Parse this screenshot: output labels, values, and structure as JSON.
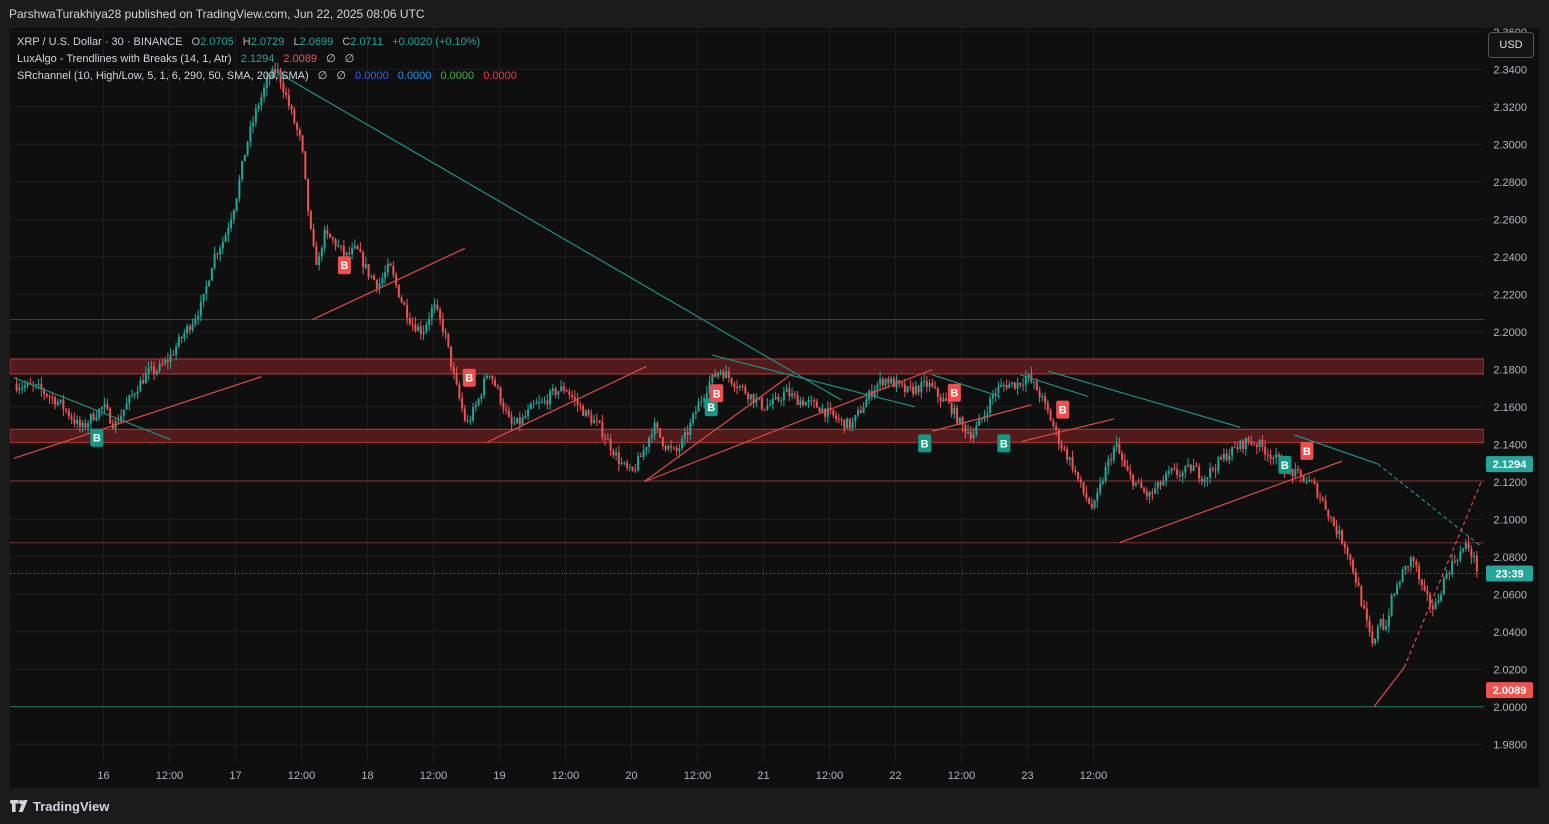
{
  "header": {
    "published_text": "ParshwaTurakhiya28 published on TradingView.com, Jun 22, 2025 08:06 UTC"
  },
  "legend": {
    "symbol": "XRP / U.S. Dollar · 30 · BINANCE",
    "ohlc": [
      {
        "key": "O",
        "value": "2.0705"
      },
      {
        "key": "H",
        "value": "2.0729"
      },
      {
        "key": "L",
        "value": "2.0699"
      },
      {
        "key": "C",
        "value": "2.0711"
      }
    ],
    "change": "+0.0020 (+0.10%)",
    "indicator1": {
      "name": "LuxAlgo - Trendlines with Breaks (14, 1, Atr)",
      "v1": "2.1294",
      "v2": "2.0089",
      "v3": "∅",
      "v4": "∅"
    },
    "indicator2": {
      "name": "SRchannel (10, High/Low, 5, 1, 6, 290, 50, SMA, 200, SMA)",
      "v1": "∅",
      "v2": "∅",
      "v3": "0.0000",
      "v4": "0.0000",
      "v5": "0.0000",
      "v6": "0.0000"
    }
  },
  "currency_button": "USD",
  "footer": {
    "brand": "TradingView"
  },
  "colors": {
    "up": "#26a69a",
    "down": "#ef5350",
    "background": "#0f0f0f",
    "grid": "#1e1e1e",
    "zone_fill": "#5e1c1c",
    "zone_line": "#b23b3b",
    "teal_line": "#1f8e86",
    "red_line": "#e04a4a"
  },
  "chart_data": {
    "type": "candlestick",
    "symbol": "XRP / U.S. Dollar",
    "interval": "30",
    "exchange": "BINANCE",
    "y_axis": {
      "ticks": [
        "2.3600",
        "2.3400",
        "2.3200",
        "2.3000",
        "2.2800",
        "2.2600",
        "2.2400",
        "2.2200",
        "2.2000",
        "2.1800",
        "2.1600",
        "2.1400",
        "2.1200",
        "2.1000",
        "2.0800",
        "2.0600",
        "2.0400",
        "2.0200",
        "2.0000",
        "1.9800"
      ],
      "range": [
        1.97,
        2.362
      ]
    },
    "x_axis": {
      "ticks": [
        "16",
        "12:00",
        "17",
        "12:00",
        "18",
        "12:00",
        "19",
        "12:00",
        "20",
        "12:00",
        "21",
        "12:00",
        "22",
        "12:00",
        "23",
        "12:00"
      ],
      "range_hours": [
        -17,
        251
      ]
    },
    "price_labels": [
      {
        "text": "2.1294",
        "price": 2.1294,
        "color": "#26a69a"
      },
      {
        "text": "23:39",
        "price": 2.0711,
        "color": "#26a69a"
      },
      {
        "text": "2.0089",
        "price": 2.0089,
        "color": "#ef5350"
      }
    ],
    "sr_zones": [
      {
        "from": 2.1775,
        "to": 2.1855
      },
      {
        "from": 2.141,
        "to": 2.148
      }
    ],
    "sr_lines": [
      2.2065,
      2.1205,
      2.0875
    ],
    "support_line": 2.0,
    "current_price": 2.0711,
    "path_points": [
      [
        -16.3,
        2.172
      ],
      [
        -12,
        2.17
      ],
      [
        -8,
        2.162
      ],
      [
        -4,
        2.148
      ],
      [
        -2,
        2.155
      ],
      [
        0,
        2.16
      ],
      [
        2,
        2.15
      ],
      [
        4,
        2.16
      ],
      [
        6,
        2.17
      ],
      [
        8,
        2.178
      ],
      [
        10,
        2.18
      ],
      [
        12,
        2.186
      ],
      [
        14,
        2.196
      ],
      [
        16,
        2.205
      ],
      [
        18,
        2.215
      ],
      [
        20,
        2.24
      ],
      [
        22,
        2.25
      ],
      [
        24,
        2.27
      ],
      [
        26,
        2.3
      ],
      [
        28,
        2.32
      ],
      [
        30,
        2.335
      ],
      [
        31.5,
        2.34
      ],
      [
        32.5,
        2.332
      ],
      [
        34,
        2.318
      ],
      [
        36,
        2.3
      ],
      [
        37,
        2.27
      ],
      [
        38,
        2.245
      ],
      [
        39,
        2.235
      ],
      [
        40,
        2.252
      ],
      [
        42,
        2.248
      ],
      [
        44,
        2.24
      ],
      [
        46,
        2.244
      ],
      [
        48,
        2.232
      ],
      [
        50,
        2.225
      ],
      [
        52,
        2.235
      ],
      [
        54,
        2.218
      ],
      [
        56,
        2.205
      ],
      [
        58,
        2.2
      ],
      [
        60,
        2.214
      ],
      [
        62,
        2.2
      ],
      [
        64,
        2.172
      ],
      [
        66,
        2.15
      ],
      [
        68,
        2.162
      ],
      [
        70,
        2.18
      ],
      [
        72,
        2.166
      ],
      [
        74,
        2.15
      ],
      [
        76,
        2.152
      ],
      [
        78,
        2.16
      ],
      [
        80,
        2.162
      ],
      [
        82,
        2.168
      ],
      [
        84,
        2.17
      ],
      [
        86,
        2.162
      ],
      [
        88,
        2.155
      ],
      [
        90,
        2.15
      ],
      [
        92,
        2.14
      ],
      [
        94,
        2.13
      ],
      [
        96,
        2.124
      ],
      [
        98,
        2.135
      ],
      [
        100,
        2.15
      ],
      [
        102,
        2.14
      ],
      [
        104,
        2.135
      ],
      [
        106,
        2.145
      ],
      [
        108,
        2.16
      ],
      [
        110,
        2.172
      ],
      [
        112,
        2.18
      ],
      [
        114,
        2.175
      ],
      [
        116,
        2.17
      ],
      [
        118,
        2.165
      ],
      [
        120,
        2.16
      ],
      [
        122,
        2.162
      ],
      [
        124,
        2.168
      ],
      [
        126,
        2.164
      ],
      [
        128,
        2.162
      ],
      [
        130,
        2.16
      ],
      [
        132,
        2.156
      ],
      [
        134,
        2.152
      ],
      [
        136,
        2.15
      ],
      [
        138,
        2.16
      ],
      [
        140,
        2.17
      ],
      [
        142,
        2.175
      ],
      [
        144,
        2.172
      ],
      [
        146,
        2.168
      ],
      [
        148,
        2.17
      ],
      [
        150,
        2.172
      ],
      [
        152,
        2.165
      ],
      [
        154,
        2.16
      ],
      [
        156,
        2.15
      ],
      [
        158,
        2.145
      ],
      [
        160,
        2.155
      ],
      [
        162,
        2.168
      ],
      [
        164,
        2.172
      ],
      [
        166,
        2.172
      ],
      [
        168,
        2.176
      ],
      [
        170,
        2.168
      ],
      [
        172,
        2.155
      ],
      [
        174,
        2.14
      ],
      [
        176,
        2.13
      ],
      [
        178,
        2.115
      ],
      [
        180,
        2.105
      ],
      [
        182,
        2.125
      ],
      [
        184,
        2.14
      ],
      [
        186,
        2.125
      ],
      [
        188,
        2.118
      ],
      [
        190,
        2.112
      ],
      [
        192,
        2.118
      ],
      [
        194,
        2.125
      ],
      [
        196,
        2.124
      ],
      [
        198,
        2.128
      ],
      [
        200,
        2.122
      ],
      [
        202,
        2.128
      ],
      [
        204,
        2.134
      ],
      [
        206,
        2.138
      ],
      [
        208,
        2.142
      ],
      [
        210,
        2.14
      ],
      [
        212,
        2.135
      ],
      [
        214,
        2.13
      ],
      [
        216,
        2.125
      ],
      [
        218,
        2.122
      ],
      [
        220,
        2.118
      ],
      [
        222,
        2.108
      ],
      [
        224,
        2.095
      ],
      [
        226,
        2.085
      ],
      [
        228,
        2.065
      ],
      [
        230,
        2.04
      ],
      [
        231,
        2.03
      ],
      [
        232,
        2.05
      ],
      [
        233,
        2.04
      ],
      [
        234,
        2.055
      ],
      [
        236,
        2.07
      ],
      [
        238,
        2.08
      ],
      [
        240,
        2.06
      ],
      [
        242,
        2.052
      ],
      [
        244,
        2.07
      ],
      [
        246,
        2.08
      ],
      [
        248,
        2.086
      ],
      [
        249,
        2.08
      ],
      [
        250,
        2.0711
      ]
    ],
    "break_signals": [
      {
        "label": "B",
        "t": -1.2,
        "price": 2.1435,
        "kind": "bull"
      },
      {
        "label": "B",
        "t": 43.8,
        "price": 2.2355,
        "kind": "bear"
      },
      {
        "label": "B",
        "t": 66.5,
        "price": 2.1755,
        "kind": "bear"
      },
      {
        "label": "B",
        "t": 110.5,
        "price": 2.1598,
        "kind": "bull"
      },
      {
        "label": "B",
        "t": 111.5,
        "price": 2.1672,
        "kind": "bear"
      },
      {
        "label": "B",
        "t": 149.3,
        "price": 2.1405,
        "kind": "bull"
      },
      {
        "label": "B",
        "t": 154.7,
        "price": 2.1675,
        "kind": "bear"
      },
      {
        "label": "B",
        "t": 163.7,
        "price": 2.1405,
        "kind": "bull"
      },
      {
        "label": "B",
        "t": 174.4,
        "price": 2.1585,
        "kind": "bear"
      },
      {
        "label": "B",
        "t": 214.8,
        "price": 2.129,
        "kind": "bull"
      },
      {
        "label": "B",
        "t": 218.8,
        "price": 2.1365,
        "kind": "bear"
      }
    ],
    "trendlines": [
      {
        "kind": "down",
        "t1": -16.3,
        "p1": 2.1755,
        "t2": 12.2,
        "p2": 2.1425
      },
      {
        "kind": "up",
        "t1": -16.3,
        "p1": 2.1325,
        "t2": 28.7,
        "p2": 2.176
      },
      {
        "kind": "down",
        "t1": 31.5,
        "p1": 2.3385,
        "t2": 134.2,
        "p2": 2.1635
      },
      {
        "kind": "up",
        "t1": 38.0,
        "p1": 2.2065,
        "t2": 65.7,
        "p2": 2.2445
      },
      {
        "kind": "up",
        "t1": 69.7,
        "p1": 2.141,
        "t2": 98.7,
        "p2": 2.1815
      },
      {
        "kind": "up",
        "t1": 98.3,
        "p1": 2.12,
        "t2": 124.7,
        "p2": 2.1765
      },
      {
        "kind": "up",
        "t1": 98.3,
        "p1": 2.12,
        "t2": 150.7,
        "p2": 2.1798
      },
      {
        "kind": "down",
        "t1": 110.7,
        "p1": 2.1875,
        "t2": 147.5,
        "p2": 2.16
      },
      {
        "kind": "down",
        "t1": 150.7,
        "p1": 2.177,
        "t2": 163.0,
        "p2": 2.1655
      },
      {
        "kind": "up",
        "t1": 150.7,
        "p1": 2.147,
        "t2": 168.7,
        "p2": 2.161
      },
      {
        "kind": "up",
        "t1": 167.0,
        "p1": 2.1415,
        "t2": 183.7,
        "p2": 2.1535
      },
      {
        "kind": "down",
        "t1": 171.7,
        "p1": 2.179,
        "t2": 206.7,
        "p2": 2.149
      },
      {
        "kind": "down",
        "t1": 166.7,
        "p1": 2.177,
        "t2": 179.0,
        "p2": 2.1655
      },
      {
        "kind": "up",
        "t1": 184.7,
        "p1": 2.0875,
        "t2": 225.2,
        "p2": 2.131
      },
      {
        "kind": "down",
        "t1": 216.5,
        "p1": 2.145,
        "t2": 231.7,
        "p2": 2.1295
      },
      {
        "kind": "down_proj",
        "t1": 231.7,
        "p1": 2.1295,
        "t2": 250.5,
        "p2": 2.0855
      },
      {
        "kind": "up",
        "t1": 231.0,
        "p1": 2.0,
        "t2": 236.5,
        "p2": 2.021
      },
      {
        "kind": "up_proj",
        "t1": 236.5,
        "p1": 2.021,
        "t2": 250.5,
        "p2": 2.12
      }
    ]
  }
}
